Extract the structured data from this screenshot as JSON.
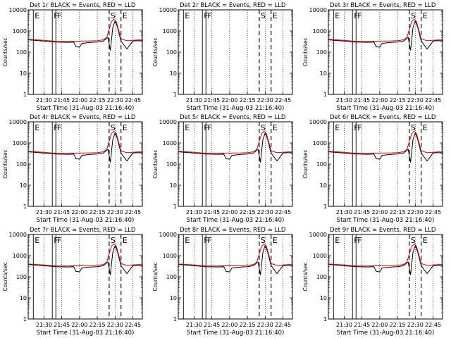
{
  "colors": {
    "events": "#000000",
    "lld": "#e00000",
    "background": "#ffffff"
  },
  "shared": {
    "xlabel": "Start Time (31-Aug-03 21:16:40)",
    "ylabel": "Counts/sec",
    "x_ticks": [
      "21:30",
      "21:45",
      "22:00",
      "22:15",
      "22:30",
      "22:45"
    ],
    "x_tick_minutes": [
      30,
      45,
      60,
      75,
      90,
      105
    ],
    "x_range_minutes": [
      16.67,
      113
    ],
    "y_scale": "log",
    "y_range": [
      1,
      10000
    ],
    "y_ticks": [
      "1",
      "10",
      "100",
      "1000",
      "10000"
    ],
    "y_tick_values": [
      1,
      10,
      100,
      1000,
      10000
    ]
  },
  "chart_data": [
    {
      "type": "line",
      "title": "Det 1r BLACK = Events, RED = LLD",
      "markers": [
        {
          "label": "E",
          "minute": 21
        },
        {
          "label": "F",
          "minute": 37
        },
        {
          "label": "F",
          "minute": 40
        },
        {
          "label": "S",
          "minute": 85
        },
        {
          "label": "E",
          "minute": 95
        }
      ],
      "series": [
        {
          "name": "Events",
          "color": "#000000",
          "x": [
            17,
            30,
            40,
            50,
            55,
            57,
            60,
            62,
            70,
            75,
            80,
            84,
            86,
            88,
            90,
            92,
            95,
            100,
            105,
            108,
            113
          ],
          "y": [
            380,
            330,
            300,
            290,
            300,
            180,
            170,
            260,
            290,
            300,
            330,
            500,
            120,
            1400,
            3000,
            1500,
            330,
            140,
            330,
            350,
            340
          ]
        },
        {
          "name": "LLD",
          "color": "#e00000",
          "x": [
            17,
            30,
            40,
            50,
            60,
            70,
            75,
            80,
            83,
            85,
            87,
            89,
            91,
            93,
            95,
            100,
            105,
            110,
            113
          ],
          "y": [
            400,
            360,
            320,
            320,
            330,
            340,
            350,
            380,
            500,
            1200,
            2800,
            3600,
            2800,
            1100,
            420,
            350,
            360,
            380,
            370
          ]
        }
      ]
    },
    {
      "type": "line",
      "title": "Det 2r BLACK = Events, RED = LLD",
      "markers": [
        {
          "label": "E",
          "minute": 21
        },
        {
          "label": "F",
          "minute": 37
        },
        {
          "label": "F",
          "minute": 40
        },
        {
          "label": "S",
          "minute": 85
        },
        {
          "label": "E",
          "minute": 95
        }
      ],
      "series": []
    },
    {
      "type": "line",
      "title": "Det 3r BLACK = Events, RED = LLD",
      "markers": [
        {
          "label": "E",
          "minute": 21
        },
        {
          "label": "F",
          "minute": 37
        },
        {
          "label": "F",
          "minute": 40
        },
        {
          "label": "S",
          "minute": 85
        },
        {
          "label": "E",
          "minute": 95
        }
      ],
      "series": [
        {
          "name": "Events",
          "color": "#000000",
          "x": [
            17,
            30,
            40,
            50,
            55,
            57,
            60,
            62,
            70,
            75,
            80,
            84,
            86,
            88,
            90,
            92,
            95,
            100,
            105,
            108,
            113
          ],
          "y": [
            380,
            330,
            300,
            290,
            300,
            180,
            170,
            260,
            290,
            300,
            330,
            500,
            120,
            1400,
            3000,
            1500,
            330,
            140,
            330,
            350,
            340
          ]
        },
        {
          "name": "LLD",
          "color": "#e00000",
          "x": [
            17,
            30,
            40,
            50,
            60,
            70,
            75,
            80,
            83,
            85,
            87,
            89,
            91,
            93,
            95,
            100,
            105,
            110,
            113
          ],
          "y": [
            400,
            360,
            320,
            320,
            330,
            340,
            350,
            380,
            500,
            1200,
            2800,
            3600,
            2800,
            1100,
            420,
            350,
            360,
            380,
            370
          ]
        }
      ]
    },
    {
      "type": "line",
      "title": "Det 4r BLACK = Events, RED = LLD",
      "markers": [
        {
          "label": "E",
          "minute": 21
        },
        {
          "label": "F",
          "minute": 37
        },
        {
          "label": "F",
          "minute": 40
        },
        {
          "label": "S",
          "minute": 85
        },
        {
          "label": "E",
          "minute": 95
        }
      ],
      "series": [
        {
          "name": "Events",
          "color": "#000000",
          "x": [
            17,
            30,
            40,
            50,
            55,
            57,
            60,
            62,
            70,
            75,
            80,
            84,
            86,
            88,
            90,
            92,
            95,
            100,
            105,
            108,
            113
          ],
          "y": [
            380,
            330,
            300,
            290,
            300,
            180,
            170,
            260,
            290,
            300,
            330,
            500,
            120,
            1400,
            3000,
            1500,
            330,
            140,
            330,
            350,
            340
          ]
        },
        {
          "name": "LLD",
          "color": "#e00000",
          "x": [
            17,
            30,
            40,
            50,
            60,
            70,
            75,
            80,
            83,
            85,
            87,
            89,
            91,
            93,
            95,
            100,
            105,
            110,
            113
          ],
          "y": [
            400,
            360,
            320,
            320,
            330,
            340,
            350,
            380,
            500,
            1200,
            2800,
            3600,
            2800,
            1100,
            420,
            350,
            360,
            380,
            370
          ]
        }
      ]
    },
    {
      "type": "line",
      "title": "Det 5r BLACK = Events, RED = LLD",
      "markers": [
        {
          "label": "E",
          "minute": 21
        },
        {
          "label": "F",
          "minute": 37
        },
        {
          "label": "F",
          "minute": 40
        },
        {
          "label": "S",
          "minute": 85
        },
        {
          "label": "E",
          "minute": 95
        }
      ],
      "series": [
        {
          "name": "Events",
          "color": "#000000",
          "x": [
            17,
            30,
            40,
            50,
            55,
            57,
            60,
            62,
            70,
            75,
            80,
            84,
            86,
            88,
            90,
            92,
            95,
            100,
            105,
            108,
            113
          ],
          "y": [
            380,
            330,
            300,
            290,
            300,
            180,
            170,
            260,
            290,
            300,
            330,
            500,
            120,
            1400,
            3000,
            1500,
            330,
            140,
            330,
            350,
            340
          ]
        },
        {
          "name": "LLD",
          "color": "#e00000",
          "x": [
            17,
            30,
            40,
            50,
            60,
            70,
            75,
            80,
            83,
            85,
            87,
            89,
            91,
            93,
            95,
            100,
            105,
            110,
            113
          ],
          "y": [
            400,
            360,
            320,
            320,
            330,
            340,
            350,
            380,
            500,
            1200,
            2800,
            3600,
            2800,
            1100,
            420,
            350,
            360,
            380,
            370
          ]
        }
      ]
    },
    {
      "type": "line",
      "title": "Det 6r BLACK = Events, RED = LLD",
      "markers": [
        {
          "label": "E",
          "minute": 21
        },
        {
          "label": "F",
          "minute": 37
        },
        {
          "label": "F",
          "minute": 40
        },
        {
          "label": "S",
          "minute": 85
        },
        {
          "label": "E",
          "minute": 95
        }
      ],
      "series": [
        {
          "name": "Events",
          "color": "#000000",
          "x": [
            17,
            30,
            40,
            50,
            55,
            57,
            60,
            62,
            70,
            75,
            80,
            84,
            86,
            88,
            90,
            92,
            95,
            100,
            105,
            108,
            113
          ],
          "y": [
            380,
            330,
            300,
            290,
            300,
            180,
            170,
            260,
            290,
            300,
            330,
            500,
            120,
            1400,
            3000,
            1500,
            330,
            140,
            330,
            350,
            340
          ]
        },
        {
          "name": "LLD",
          "color": "#e00000",
          "x": [
            17,
            30,
            40,
            50,
            60,
            70,
            75,
            80,
            83,
            85,
            87,
            89,
            91,
            93,
            95,
            100,
            105,
            110,
            113
          ],
          "y": [
            400,
            360,
            320,
            320,
            330,
            340,
            350,
            380,
            500,
            1200,
            2800,
            3600,
            2800,
            1100,
            420,
            350,
            360,
            380,
            370
          ]
        }
      ]
    },
    {
      "type": "line",
      "title": "Det 7r BLACK = Events, RED = LLD",
      "markers": [
        {
          "label": "E",
          "minute": 21
        },
        {
          "label": "F",
          "minute": 37
        },
        {
          "label": "F",
          "minute": 40
        },
        {
          "label": "S",
          "minute": 85
        },
        {
          "label": "E",
          "minute": 95
        }
      ],
      "series": [
        {
          "name": "Events",
          "color": "#000000",
          "x": [
            17,
            30,
            40,
            50,
            55,
            57,
            60,
            62,
            70,
            75,
            80,
            84,
            86,
            88,
            90,
            92,
            95,
            100,
            105,
            108,
            113
          ],
          "y": [
            380,
            330,
            300,
            290,
            300,
            180,
            170,
            260,
            290,
            300,
            330,
            500,
            120,
            1400,
            3000,
            1500,
            330,
            140,
            330,
            350,
            340
          ]
        },
        {
          "name": "LLD",
          "color": "#e00000",
          "x": [
            17,
            30,
            40,
            50,
            60,
            70,
            75,
            80,
            83,
            85,
            87,
            89,
            91,
            93,
            95,
            100,
            105,
            110,
            113
          ],
          "y": [
            400,
            360,
            320,
            320,
            330,
            340,
            350,
            380,
            500,
            1200,
            2800,
            3600,
            2800,
            1100,
            420,
            350,
            360,
            380,
            370
          ]
        }
      ]
    },
    {
      "type": "line",
      "title": "Det 8r BLACK = Events, RED = LLD",
      "markers": [
        {
          "label": "E",
          "minute": 21
        },
        {
          "label": "F",
          "minute": 37
        },
        {
          "label": "F",
          "minute": 40
        },
        {
          "label": "S",
          "minute": 85
        },
        {
          "label": "E",
          "minute": 95
        }
      ],
      "series": [
        {
          "name": "Events",
          "color": "#000000",
          "x": [
            17,
            30,
            40,
            50,
            55,
            57,
            60,
            62,
            70,
            75,
            80,
            84,
            86,
            88,
            90,
            92,
            95,
            100,
            105,
            108,
            113
          ],
          "y": [
            380,
            330,
            300,
            290,
            300,
            180,
            170,
            260,
            290,
            300,
            330,
            500,
            120,
            1400,
            3000,
            1500,
            330,
            140,
            330,
            350,
            340
          ]
        },
        {
          "name": "LLD",
          "color": "#e00000",
          "x": [
            17,
            30,
            40,
            50,
            60,
            70,
            75,
            80,
            83,
            85,
            87,
            89,
            91,
            93,
            95,
            100,
            105,
            110,
            113
          ],
          "y": [
            400,
            360,
            320,
            320,
            330,
            340,
            350,
            380,
            500,
            1200,
            2800,
            3600,
            2800,
            1100,
            420,
            350,
            360,
            380,
            370
          ]
        }
      ]
    },
    {
      "type": "line",
      "title": "Det 9r BLACK = Events, RED = LLD",
      "markers": [
        {
          "label": "E",
          "minute": 21
        },
        {
          "label": "F",
          "minute": 37
        },
        {
          "label": "F",
          "minute": 40
        },
        {
          "label": "S",
          "minute": 85
        },
        {
          "label": "E",
          "minute": 95
        }
      ],
      "series": [
        {
          "name": "Events",
          "color": "#000000",
          "x": [
            17,
            30,
            40,
            50,
            55,
            57,
            60,
            62,
            70,
            75,
            80,
            84,
            86,
            88,
            90,
            92,
            95,
            100,
            105,
            108,
            113
          ],
          "y": [
            380,
            330,
            300,
            290,
            300,
            180,
            170,
            260,
            290,
            300,
            330,
            500,
            120,
            1400,
            3000,
            1500,
            330,
            140,
            330,
            350,
            340
          ]
        },
        {
          "name": "LLD",
          "color": "#e00000",
          "x": [
            17,
            30,
            40,
            50,
            60,
            70,
            75,
            80,
            83,
            85,
            87,
            89,
            91,
            93,
            95,
            100,
            105,
            110,
            113
          ],
          "y": [
            400,
            360,
            320,
            320,
            330,
            340,
            350,
            380,
            500,
            1200,
            2800,
            3600,
            2800,
            1100,
            420,
            350,
            360,
            380,
            370
          ]
        }
      ]
    }
  ]
}
